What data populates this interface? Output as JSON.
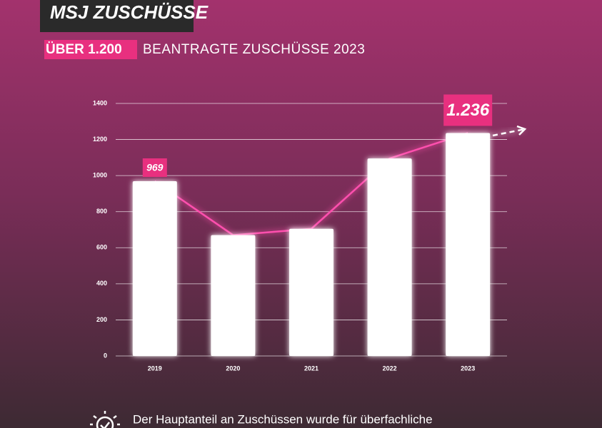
{
  "header": {
    "title": "MSJ ZUSCHÜSSE",
    "subtitle_highlight": "ÜBER 1.200",
    "subtitle": "BEANTRAGTE ZUSCHÜSSE 2023"
  },
  "chart_data": {
    "type": "bar",
    "categories": [
      "2019",
      "2020",
      "2021",
      "2022",
      "2023"
    ],
    "values": [
      969,
      670,
      705,
      1095,
      1236
    ],
    "value_labels": [
      "969",
      null,
      null,
      null,
      "1.236"
    ],
    "color": "#ffffff",
    "line_color": "#ff4fae",
    "label_color": "#e8307f",
    "ylim": [
      0,
      1400
    ],
    "yticks": [
      0,
      200,
      400,
      600,
      800,
      1000,
      1200,
      1400
    ],
    "grid": true
  },
  "footer": {
    "text": "Der Hauptanteil an Zuschüssen wurde für überfachliche"
  }
}
